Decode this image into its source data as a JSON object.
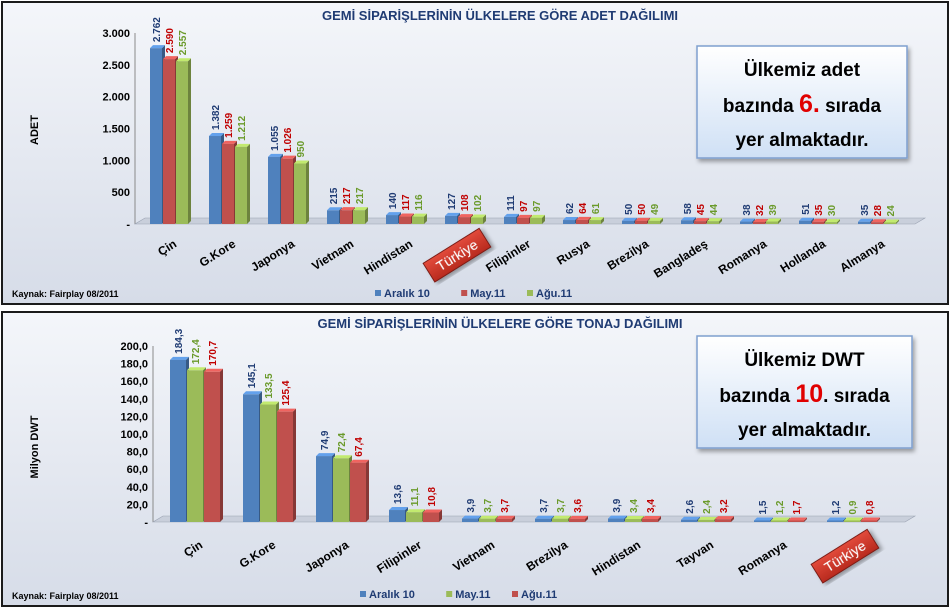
{
  "chart_data": [
    {
      "type": "bar",
      "title": "GEMİ SİPARİŞLERİNİN ÜLKELERE GÖRE ADET DAĞILIMI",
      "ylabel": "ADET",
      "xlabel": "",
      "ylim": [
        0,
        3000
      ],
      "yticks": [
        "-",
        "500",
        "1.000",
        "1.500",
        "2.000",
        "2.500",
        "3.000"
      ],
      "categories": [
        "Çin",
        "G.Kore",
        "Japonya",
        "Vietnam",
        "Hindistan",
        "Türkiye",
        "Filipinler",
        "Rusya",
        "Brezilya",
        "Bangladeş",
        "Romanya",
        "Hollanda",
        "Almanya"
      ],
      "highlight_index": 5,
      "series": [
        {
          "name": "Aralık 10",
          "color": "#4f81bd",
          "labelColor": "#1f3b73",
          "values": [
            2762,
            1382,
            1055,
            215,
            140,
            127,
            111,
            62,
            50,
            58,
            38,
            51,
            35
          ],
          "labels": [
            "2.762",
            "1.382",
            "1.055",
            "215",
            "140",
            "127",
            "111",
            "62",
            "50",
            "58",
            "38",
            "51",
            "35"
          ]
        },
        {
          "name": "May.11",
          "color": "#c0504d",
          "labelColor": "#c00000",
          "values": [
            2590,
            1259,
            1026,
            217,
            117,
            108,
            97,
            64,
            50,
            45,
            32,
            35,
            28
          ],
          "labels": [
            "2.590",
            "1.259",
            "1.026",
            "217",
            "117",
            "108",
            "97",
            "64",
            "50",
            "45",
            "32",
            "35",
            "28"
          ]
        },
        {
          "name": "Ağu.11",
          "color": "#9bbb59",
          "labelColor": "#6a9a2a",
          "values": [
            2557,
            1212,
            950,
            217,
            116,
            102,
            97,
            61,
            49,
            44,
            39,
            30,
            24
          ],
          "labels": [
            "2.557",
            "1.212",
            "950",
            "217",
            "116",
            "102",
            "97",
            "61",
            "49",
            "44",
            "39",
            "30",
            "24"
          ]
        }
      ],
      "source": "Kaynak: Fairplay 08/2011",
      "callout": {
        "line1": "Ülkemiz adet",
        "line2a": "bazında ",
        "rank": "6.",
        "line2b": " sırada",
        "line3": "yer almaktadır."
      },
      "legend": "bottom",
      "grid": false
    },
    {
      "type": "bar",
      "title": "GEMİ SİPARİŞLERİNİN ÜLKELERE GÖRE TONAJ DAĞILIMI",
      "ylabel": "Milyon DWT",
      "xlabel": "",
      "ylim": [
        0,
        200
      ],
      "yticks": [
        "-",
        "20,0",
        "40,0",
        "60,0",
        "80,0",
        "100,0",
        "120,0",
        "140,0",
        "160,0",
        "180,0",
        "200,0"
      ],
      "categories": [
        "Çin",
        "G.Kore",
        "Japonya",
        "Filipinler",
        "Vietnam",
        "Brezilya",
        "Hindistan",
        "Tayvan",
        "Romanya",
        "Türkiye"
      ],
      "highlight_index": 9,
      "series": [
        {
          "name": "Aralık 10",
          "color": "#4f81bd",
          "labelColor": "#1f3b73",
          "values": [
            184.3,
            145.1,
            74.9,
            13.6,
            3.9,
            3.7,
            3.9,
            2.6,
            1.5,
            1.2
          ],
          "labels": [
            "184,3",
            "145,1",
            "74,9",
            "13,6",
            "3,9",
            "3,7",
            "3,9",
            "2,6",
            "1,5",
            "1,2"
          ]
        },
        {
          "name": "May.11",
          "color": "#9bbb59",
          "labelColor": "#6a9a2a",
          "values": [
            172.4,
            133.5,
            72.4,
            11.1,
            3.7,
            3.7,
            3.4,
            2.4,
            1.2,
            0.9
          ],
          "labels": [
            "172,4",
            "133,5",
            "72,4",
            "11,1",
            "3,7",
            "3,7",
            "3,4",
            "2,4",
            "1,2",
            "0,9"
          ]
        },
        {
          "name": "Ağu.11",
          "color": "#c0504d",
          "labelColor": "#c00000",
          "values": [
            170.7,
            125.4,
            67.4,
            10.8,
            3.7,
            3.6,
            3.4,
            3.2,
            1.7,
            0.8
          ],
          "labels": [
            "170,7",
            "125,4",
            "67,4",
            "10,8",
            "3,7",
            "3,6",
            "3,4",
            "3,2",
            "1,7",
            "0,8"
          ]
        }
      ],
      "source": "Kaynak: Fairplay 08/2011",
      "callout": {
        "line1": "Ülkemiz DWT",
        "line2a": "bazında ",
        "rank": "10",
        "line2b": ". sırada",
        "line3": "yer almaktadır."
      },
      "legend": "bottom",
      "grid": false
    }
  ]
}
